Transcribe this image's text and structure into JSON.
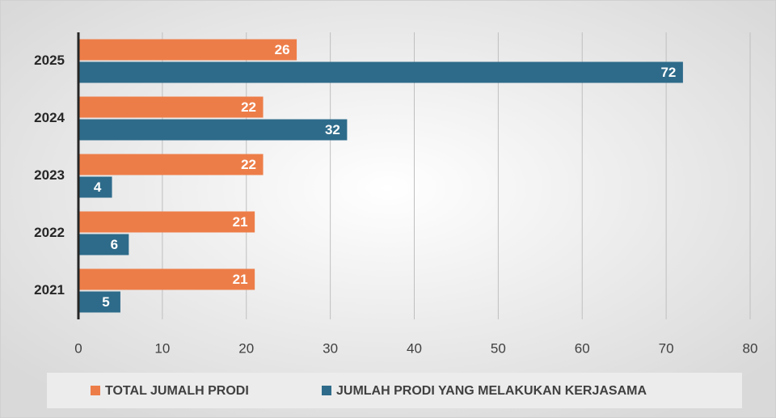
{
  "chart_data": {
    "type": "barh",
    "categories": [
      "2025",
      "2024",
      "2023",
      "2022",
      "2021"
    ],
    "series": [
      {
        "name": "TOTAL JUMALH PRODI",
        "color": "#ed7d48",
        "values": [
          26,
          22,
          22,
          21,
          21
        ]
      },
      {
        "name": "JUMLAH PRODI YANG MELAKUKAN KERJASAMA",
        "color": "#2e6b8a",
        "values": [
          72,
          32,
          4,
          6,
          5
        ]
      }
    ],
    "xlim": [
      0,
      80
    ],
    "xticks": [
      0,
      10,
      20,
      30,
      40,
      50,
      60,
      70,
      80
    ],
    "grid": true,
    "legend": "bottom"
  }
}
